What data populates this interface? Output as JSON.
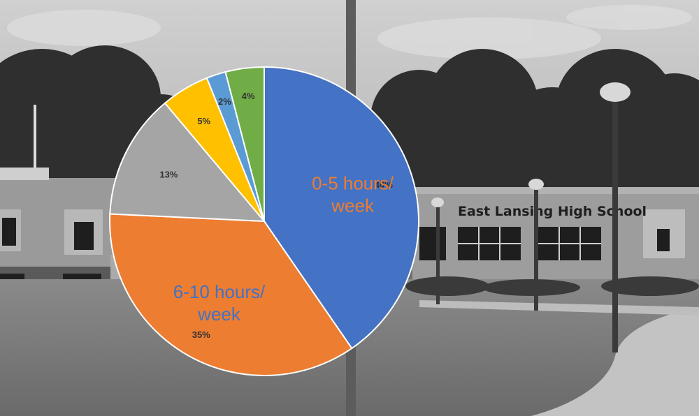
{
  "background": {
    "sign_text": "East Lansing High School"
  },
  "chart_data": {
    "type": "pie",
    "title": "",
    "slices": [
      {
        "label": "0-5 hours/ week",
        "value": 40,
        "value_label": "40%",
        "color": "#4472C4",
        "category_color": "#ED7D31"
      },
      {
        "label": "6-10 hours/ week",
        "value": 35,
        "value_label": "35%",
        "color": "#ED7D31",
        "category_color": "#4472C4"
      },
      {
        "label": "",
        "value": 13,
        "value_label": "13%",
        "color": "#A5A5A5"
      },
      {
        "label": "",
        "value": 5,
        "value_label": "5%",
        "color": "#FFC000"
      },
      {
        "label": "",
        "value": 2,
        "value_label": "2%",
        "color": "#5B9BD5"
      },
      {
        "label": "",
        "value": 4,
        "value_label": "4%",
        "color": "#70AD47"
      }
    ]
  }
}
